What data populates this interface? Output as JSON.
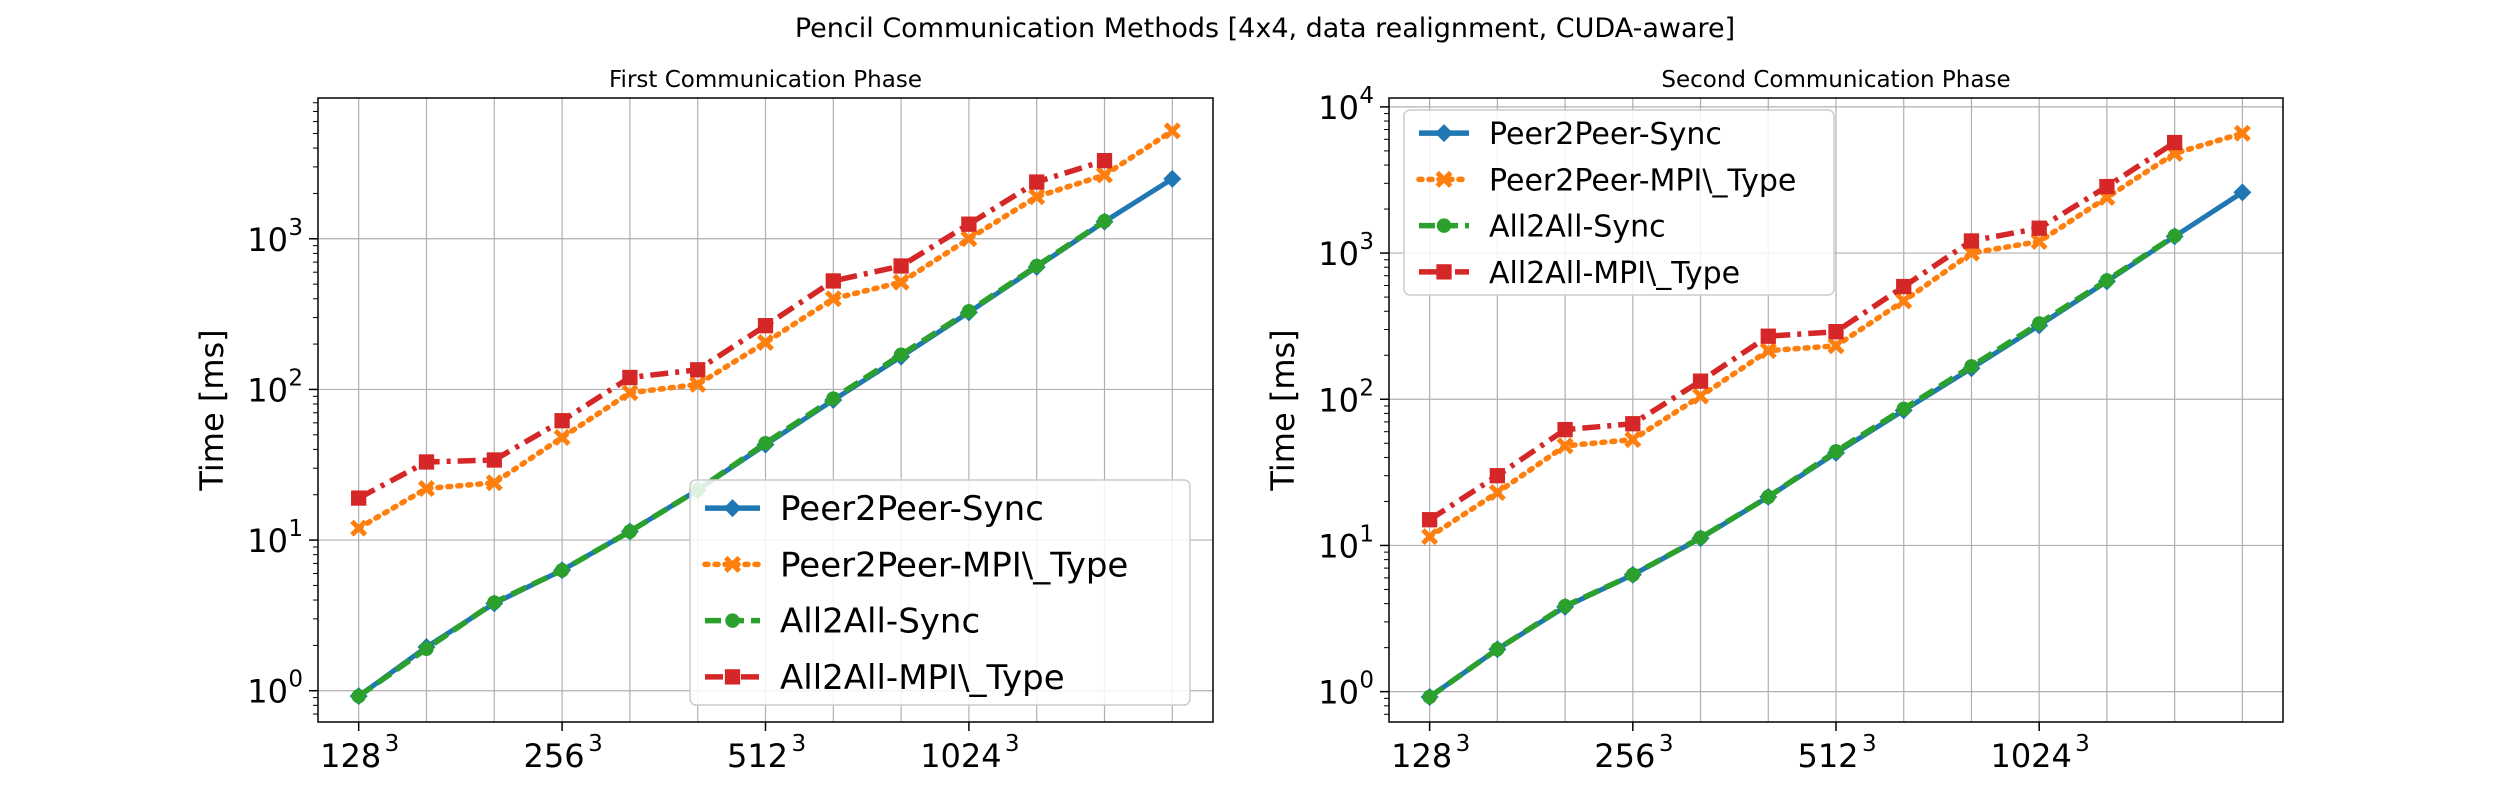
{
  "suptitle": "Pencil Communication Methods [4x4, data realignment, CUDA-aware]",
  "colors": {
    "peer2peer_sync": "#1f77b4",
    "peer2peer_mpi_type": "#ff7f0e",
    "all2all_sync": "#2ca02c",
    "all2all_mpi_type": "#d62728"
  },
  "chart_data": [
    {
      "type": "line",
      "title": "First Communication Phase",
      "ylabel": "Time [ms]",
      "xlabel": "",
      "yscale": "log",
      "ylim": [
        0.62,
        8600
      ],
      "xlim": [
        -0.6,
        12.6
      ],
      "grid": true,
      "legend_position": "lower-right",
      "x_ticks": [
        {
          "x": 0,
          "base": "128",
          "exp": "3"
        },
        {
          "x": 3,
          "base": "256",
          "exp": "3"
        },
        {
          "x": 6,
          "base": "512",
          "exp": "3"
        },
        {
          "x": 9,
          "base": "1024",
          "exp": "3"
        }
      ],
      "y_ticks": [
        {
          "value": 1,
          "base": "10",
          "exp": "0"
        },
        {
          "value": 10,
          "base": "10",
          "exp": "1"
        },
        {
          "value": 100,
          "base": "10",
          "exp": "2"
        },
        {
          "value": 1000,
          "base": "10",
          "exp": "3"
        }
      ],
      "series": [
        {
          "name": "Peer2Peer-Sync",
          "color": "#1f77b4",
          "line": "solid",
          "marker": "diamond",
          "x": [
            0,
            1,
            2,
            3,
            4,
            5,
            6,
            7,
            8,
            9,
            10,
            11,
            12
          ],
          "y": [
            0.92,
            1.95,
            3.8,
            6.3,
            11.4,
            21.5,
            43,
            85,
            165,
            325,
            650,
            1300,
            2500
          ]
        },
        {
          "name": "Peer2Peer-MPI\\_Type",
          "color": "#ff7f0e",
          "line": "dotted",
          "marker": "x",
          "x": [
            0,
            1,
            2,
            3,
            4,
            5,
            6,
            7,
            8,
            9,
            10,
            11,
            12
          ],
          "y": [
            12,
            22,
            24,
            48,
            95,
            108,
            205,
            400,
            515,
            1000,
            1900,
            2650,
            5200
          ]
        },
        {
          "name": "All2All-Sync",
          "color": "#2ca02c",
          "line": "dashed",
          "marker": "circle",
          "x": [
            0,
            1,
            2,
            3,
            4,
            5,
            6,
            7,
            8,
            9,
            10,
            11
          ],
          "y": [
            0.92,
            1.9,
            3.85,
            6.3,
            11.4,
            21.5,
            44,
            87,
            170,
            330,
            660,
            1310
          ]
        },
        {
          "name": "All2All-MPI\\_Type",
          "color": "#d62728",
          "line": "dashdot",
          "marker": "square",
          "x": [
            0,
            1,
            2,
            3,
            4,
            5,
            6,
            7,
            8,
            9,
            10,
            11
          ],
          "y": [
            19,
            33,
            34,
            62,
            120,
            135,
            265,
            525,
            660,
            1250,
            2380,
            3300
          ]
        }
      ]
    },
    {
      "type": "line",
      "title": "Second Communication Phase",
      "ylabel": "Time [ms]",
      "xlabel": "",
      "yscale": "log",
      "ylim": [
        0.62,
        11500
      ],
      "xlim": [
        -0.6,
        12.6
      ],
      "grid": true,
      "legend_position": "upper-left",
      "x_ticks": [
        {
          "x": 0,
          "base": "128",
          "exp": "3"
        },
        {
          "x": 3,
          "base": "256",
          "exp": "3"
        },
        {
          "x": 6,
          "base": "512",
          "exp": "3"
        },
        {
          "x": 9,
          "base": "1024",
          "exp": "3"
        }
      ],
      "y_ticks": [
        {
          "value": 1,
          "base": "10",
          "exp": "0"
        },
        {
          "value": 10,
          "base": "10",
          "exp": "1"
        },
        {
          "value": 100,
          "base": "10",
          "exp": "2"
        },
        {
          "value": 1000,
          "base": "10",
          "exp": "3"
        },
        {
          "value": 10000,
          "base": "10",
          "exp": "4"
        }
      ],
      "series": [
        {
          "name": "Peer2Peer-Sync",
          "color": "#1f77b4",
          "line": "solid",
          "marker": "diamond",
          "x": [
            0,
            1,
            2,
            3,
            4,
            5,
            6,
            7,
            8,
            9,
            10,
            11,
            12
          ],
          "y": [
            0.92,
            1.95,
            3.8,
            6.3,
            11.2,
            21.5,
            43,
            84,
            163,
            320,
            640,
            1300,
            2600
          ]
        },
        {
          "name": "Peer2Peer-MPI\\_Type",
          "color": "#ff7f0e",
          "line": "dotted",
          "marker": "x",
          "x": [
            0,
            1,
            2,
            3,
            4,
            5,
            6,
            7,
            8,
            9,
            10,
            11,
            12
          ],
          "y": [
            11.5,
            23,
            48,
            53,
            105,
            215,
            232,
            470,
            1000,
            1200,
            2400,
            4800,
            6600
          ]
        },
        {
          "name": "All2All-Sync",
          "color": "#2ca02c",
          "line": "dashed",
          "marker": "circle",
          "x": [
            0,
            1,
            2,
            3,
            4,
            5,
            6,
            7,
            8,
            9,
            10,
            11
          ],
          "y": [
            0.92,
            1.95,
            3.85,
            6.3,
            11.3,
            21.5,
            44,
            86,
            168,
            330,
            650,
            1310
          ]
        },
        {
          "name": "All2All-MPI\\_Type",
          "color": "#d62728",
          "line": "dashdot",
          "marker": "square",
          "x": [
            0,
            1,
            2,
            3,
            4,
            5,
            6,
            7,
            8,
            9,
            10,
            11
          ],
          "y": [
            15,
            30,
            62,
            68,
            133,
            270,
            290,
            590,
            1210,
            1480,
            2850,
            5700
          ]
        }
      ]
    }
  ]
}
